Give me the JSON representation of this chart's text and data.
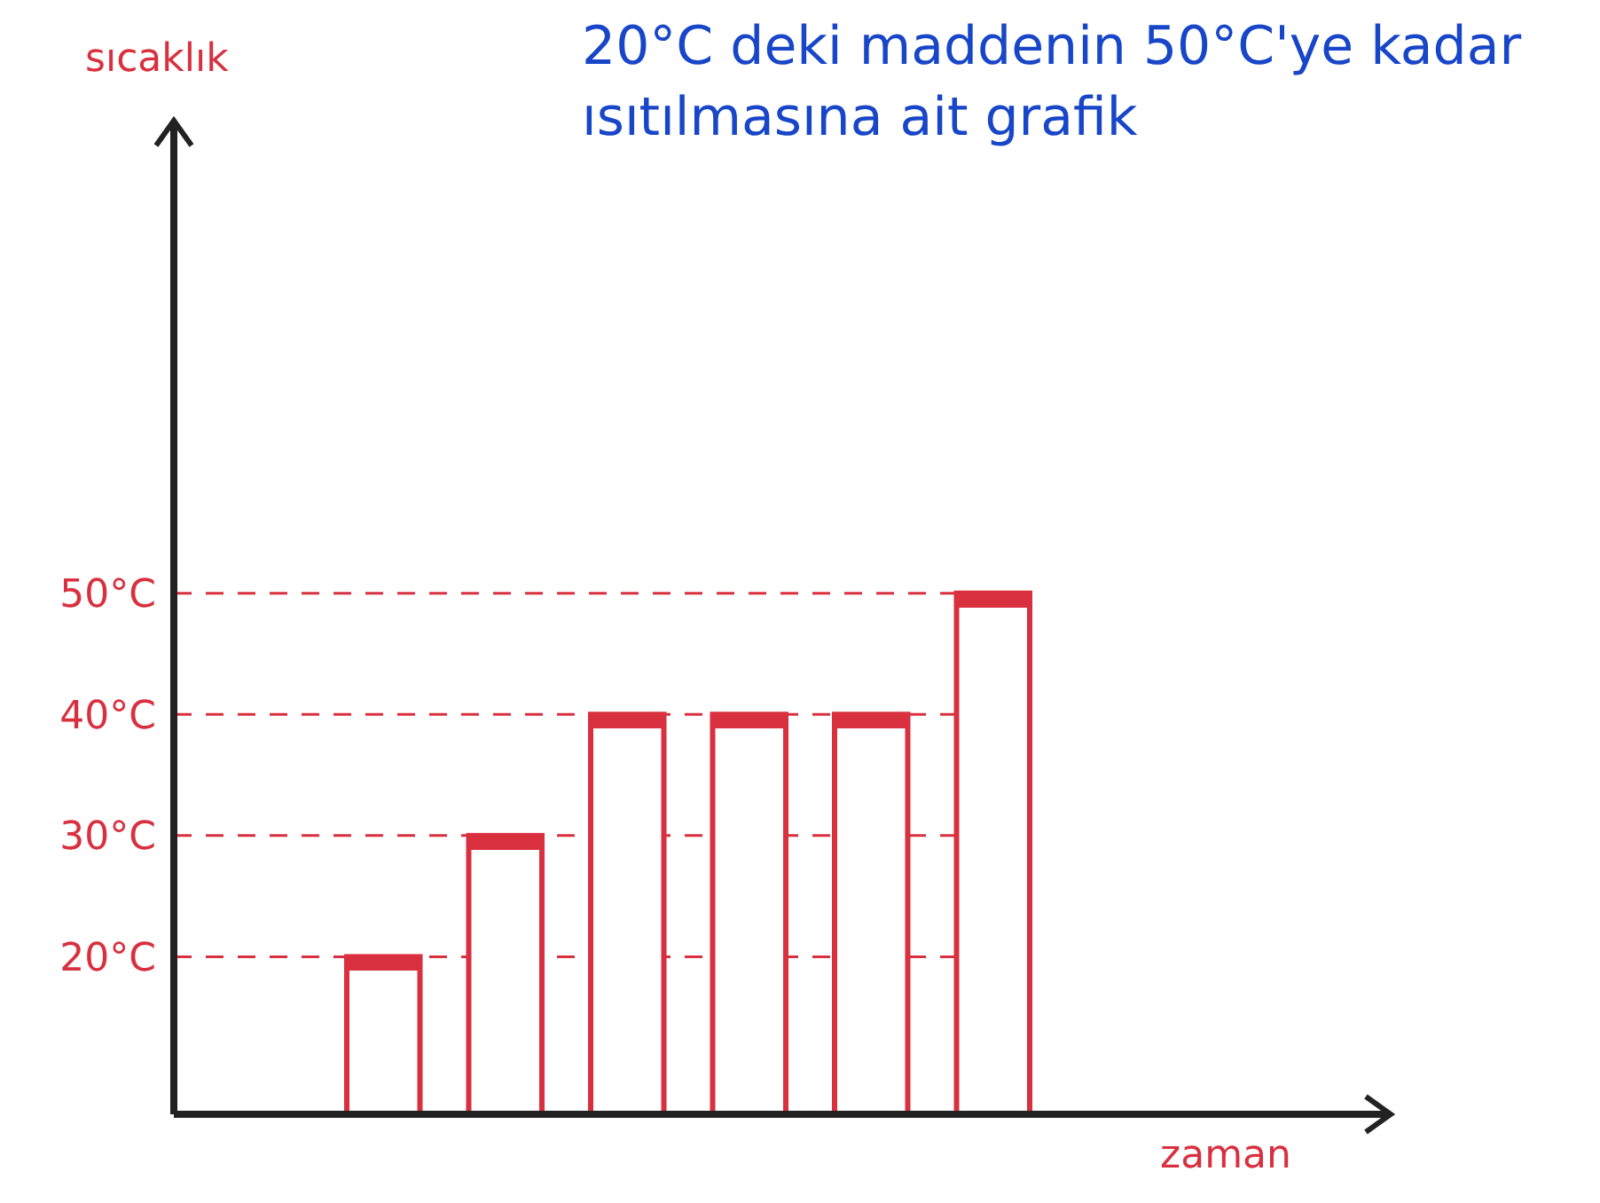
{
  "chart_data": {
    "type": "bar",
    "title": "20°C deki maddenin 50°C'ye kadar ısıtılmasına ait grafik",
    "xlabel": "zaman",
    "ylabel": "sıcaklık",
    "categories": [
      null,
      null,
      null,
      null,
      null,
      null
    ],
    "values": [
      20,
      30,
      40,
      40,
      40,
      50
    ],
    "color": "#d9303f",
    "ylim": [
      7,
      89
    ],
    "yticks": [
      {
        "value": 20,
        "label": "20°C"
      },
      {
        "value": 30,
        "label": "30°C"
      },
      {
        "value": 40,
        "label": "40°C"
      },
      {
        "value": 50,
        "label": "50°C"
      }
    ],
    "grid": "y",
    "line_style": "dashed"
  }
}
